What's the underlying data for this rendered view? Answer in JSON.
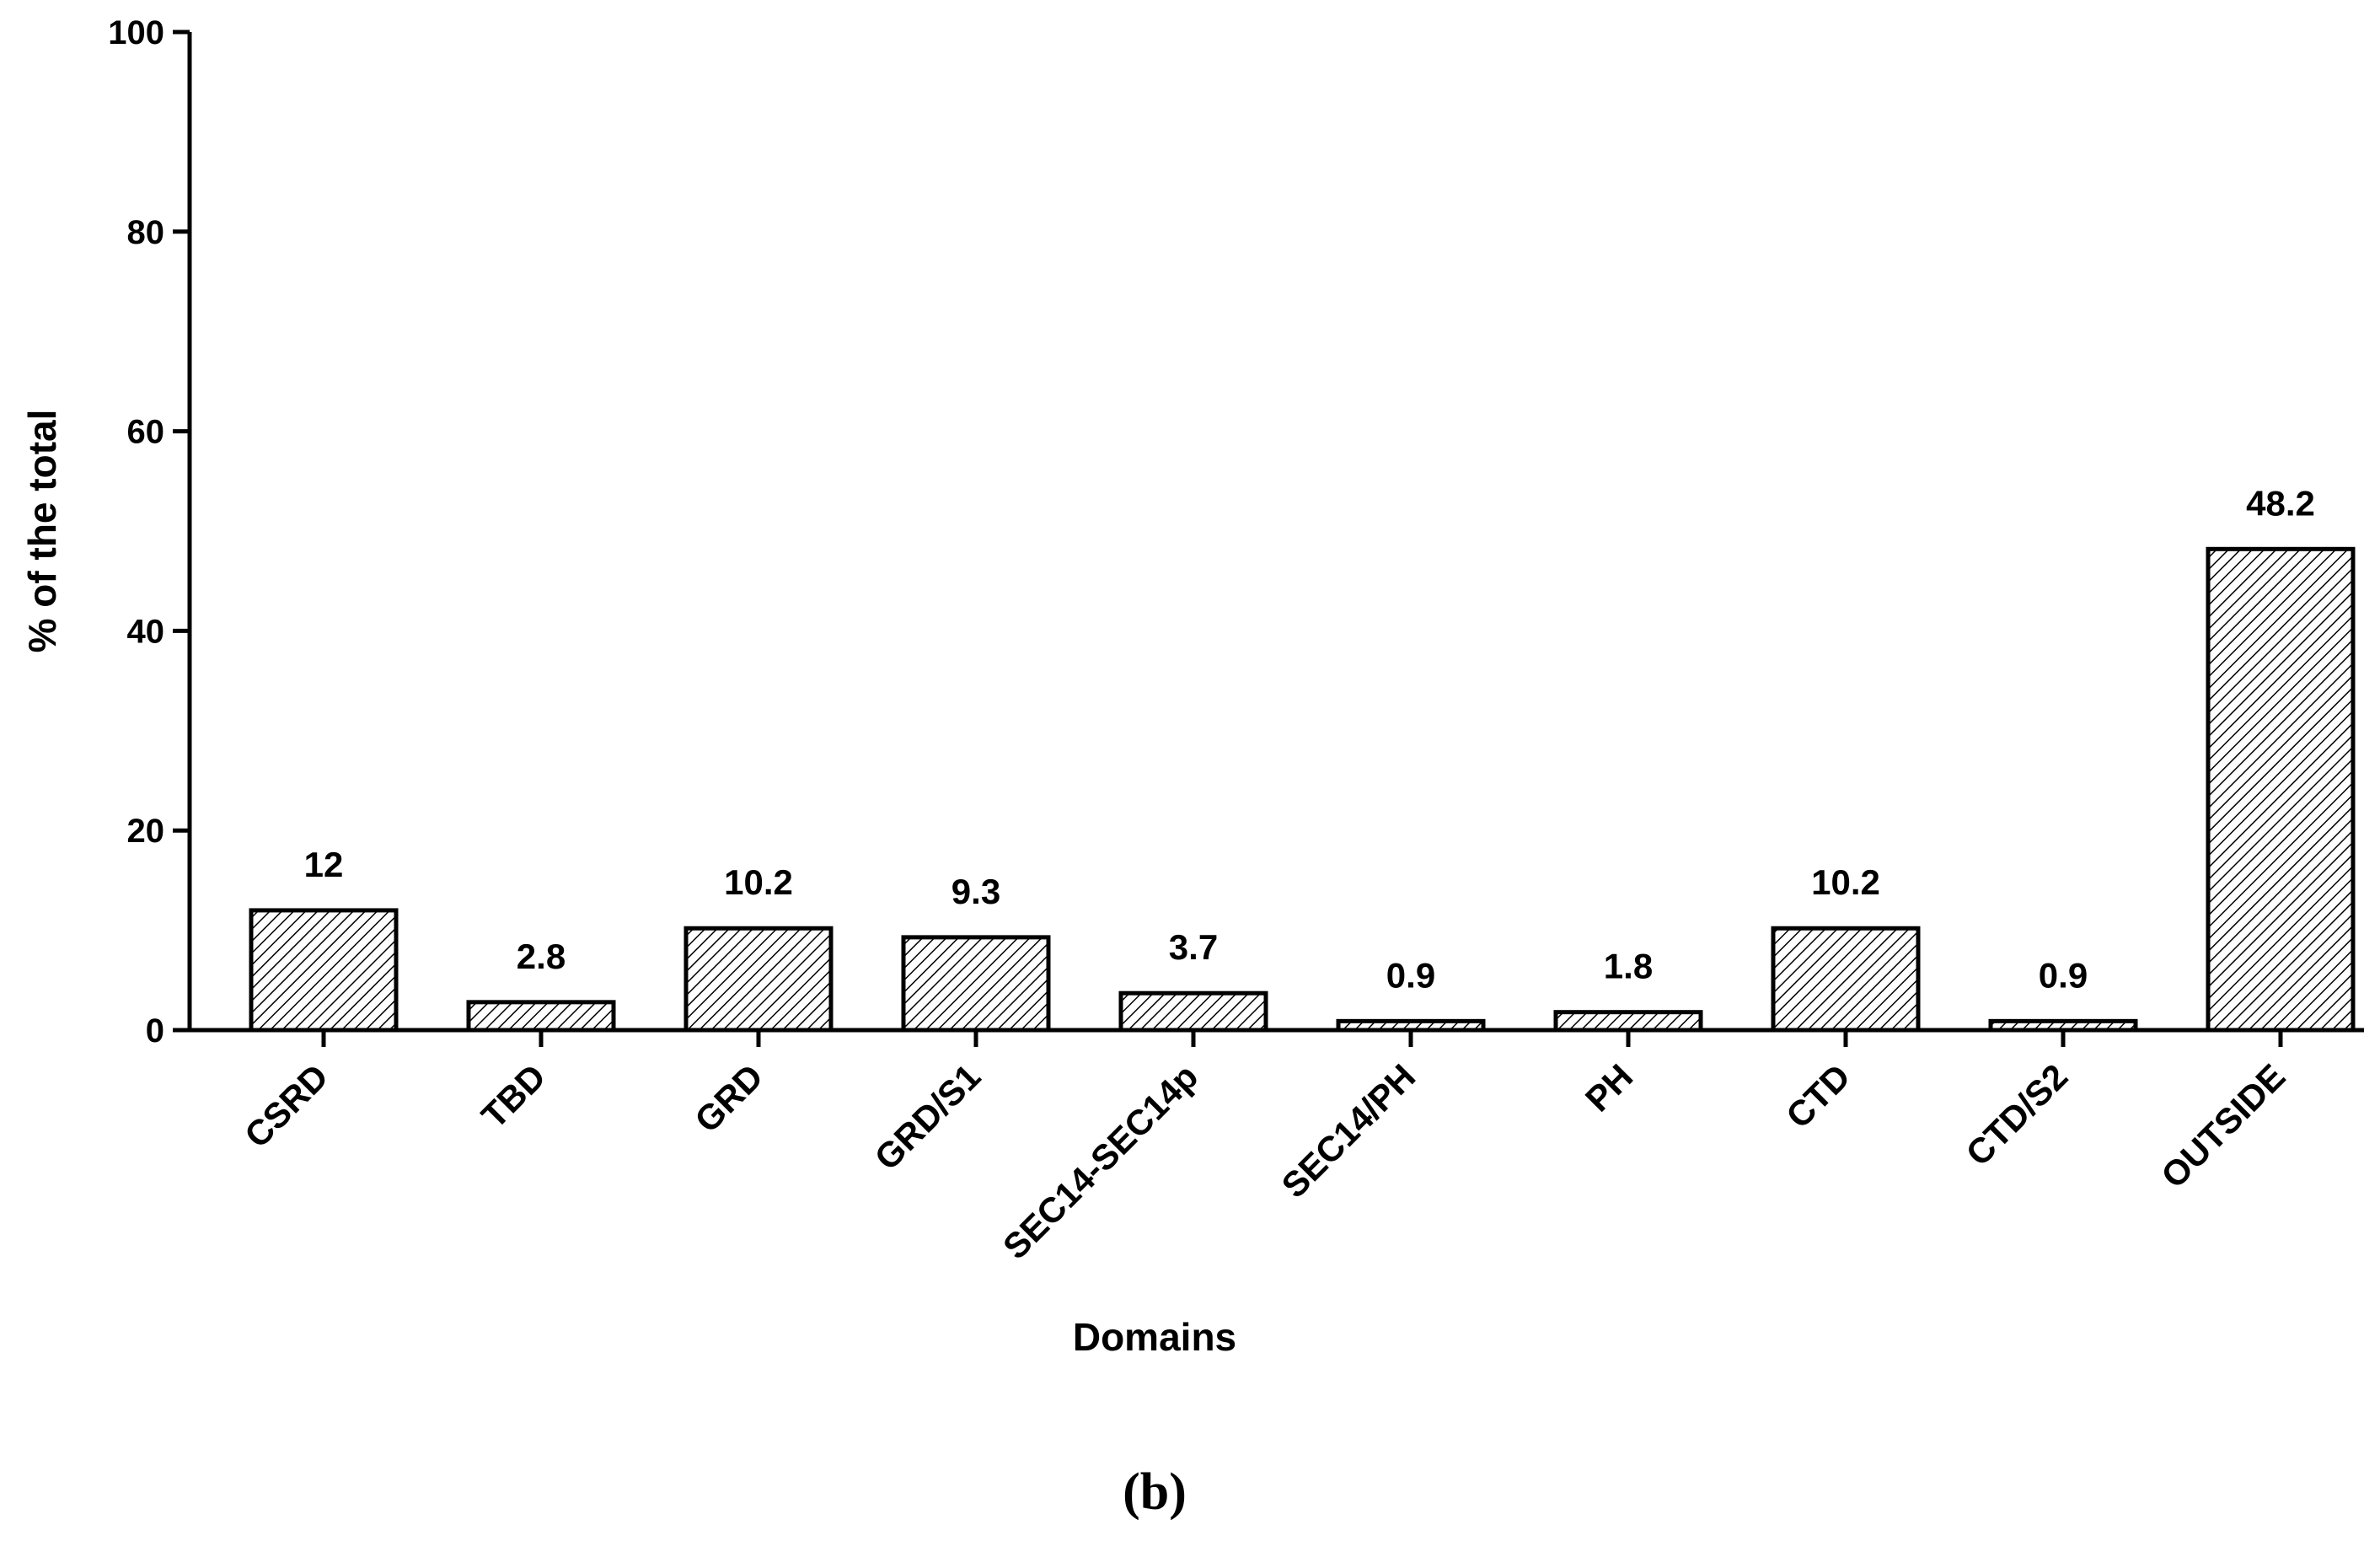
{
  "chart_data": {
    "type": "bar",
    "categories": [
      "CSRD",
      "TBD",
      "GRD",
      "GRD/S1",
      "SEC14-SEC14p",
      "SEC14/PH",
      "PH",
      "CTD",
      "CTD/S2",
      "OUTSIDE"
    ],
    "values": [
      12,
      2.8,
      10.2,
      9.3,
      3.7,
      0.9,
      1.8,
      10.2,
      0.9,
      48.2
    ],
    "data_labels": [
      "12",
      "2.8",
      "10.2",
      "9.3",
      "3.7",
      "0.9",
      "1.8",
      "10.2",
      "0.9",
      "48.2"
    ],
    "title": "",
    "xlabel": "Domains",
    "ylabel": "% of the total",
    "ylim": [
      0,
      100
    ],
    "yticks": [
      "0",
      "20",
      "40",
      "60",
      "80",
      "100"
    ],
    "grid": false,
    "legend": "none",
    "bar_fill": "diagonal-hatch",
    "bar_color": "#000000",
    "background": "#ffffff"
  },
  "panel_label": "(b)"
}
